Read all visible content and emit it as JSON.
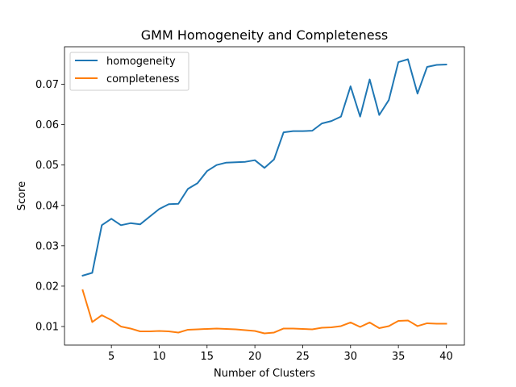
{
  "chart_data": {
    "type": "line",
    "title": "GMM Homogeneity and Completeness",
    "xlabel": "Number of Clusters",
    "ylabel": "Score",
    "xlim": [
      0.1,
      41.9
    ],
    "ylim": [
      0.0054,
      0.0793
    ],
    "xticks": [
      5,
      10,
      15,
      20,
      25,
      30,
      35,
      40
    ],
    "xtick_labels": [
      "5",
      "10",
      "15",
      "20",
      "25",
      "30",
      "35",
      "40"
    ],
    "yticks": [
      0.01,
      0.02,
      0.03,
      0.04,
      0.05,
      0.06,
      0.07
    ],
    "ytick_labels": [
      "0.01",
      "0.02",
      "0.03",
      "0.04",
      "0.05",
      "0.06",
      "0.07"
    ],
    "grid": false,
    "legend_position": "upper-left",
    "x": [
      2,
      3,
      4,
      5,
      6,
      7,
      8,
      9,
      10,
      11,
      12,
      13,
      14,
      15,
      16,
      17,
      18,
      19,
      20,
      21,
      22,
      23,
      24,
      25,
      26,
      27,
      28,
      29,
      30,
      31,
      32,
      33,
      34,
      35,
      36,
      37,
      38,
      39,
      40
    ],
    "series": [
      {
        "name": "homogeneity",
        "color": "#1f77b4",
        "values": [
          0.0226,
          0.0233,
          0.0351,
          0.0367,
          0.0351,
          0.0356,
          0.0353,
          0.0372,
          0.0391,
          0.0403,
          0.0404,
          0.0441,
          0.0455,
          0.0485,
          0.05,
          0.0506,
          0.0507,
          0.0508,
          0.0512,
          0.0493,
          0.0514,
          0.0581,
          0.0584,
          0.0584,
          0.0585,
          0.0603,
          0.0609,
          0.062,
          0.0695,
          0.062,
          0.0712,
          0.0624,
          0.0661,
          0.0755,
          0.0762,
          0.0677,
          0.0743,
          0.0748,
          0.0749
        ]
      },
      {
        "name": "completeness",
        "color": "#ff7f0e",
        "values": [
          0.019,
          0.0111,
          0.0128,
          0.0116,
          0.01,
          0.0095,
          0.0088,
          0.0088,
          0.0089,
          0.0088,
          0.0085,
          0.0092,
          0.0093,
          0.0094,
          0.0095,
          0.0094,
          0.0093,
          0.0091,
          0.0089,
          0.0083,
          0.0085,
          0.0095,
          0.0095,
          0.0094,
          0.0093,
          0.0097,
          0.0098,
          0.0101,
          0.011,
          0.0099,
          0.011,
          0.0096,
          0.0101,
          0.0114,
          0.0115,
          0.0101,
          0.0108,
          0.0107,
          0.0107
        ]
      }
    ]
  }
}
